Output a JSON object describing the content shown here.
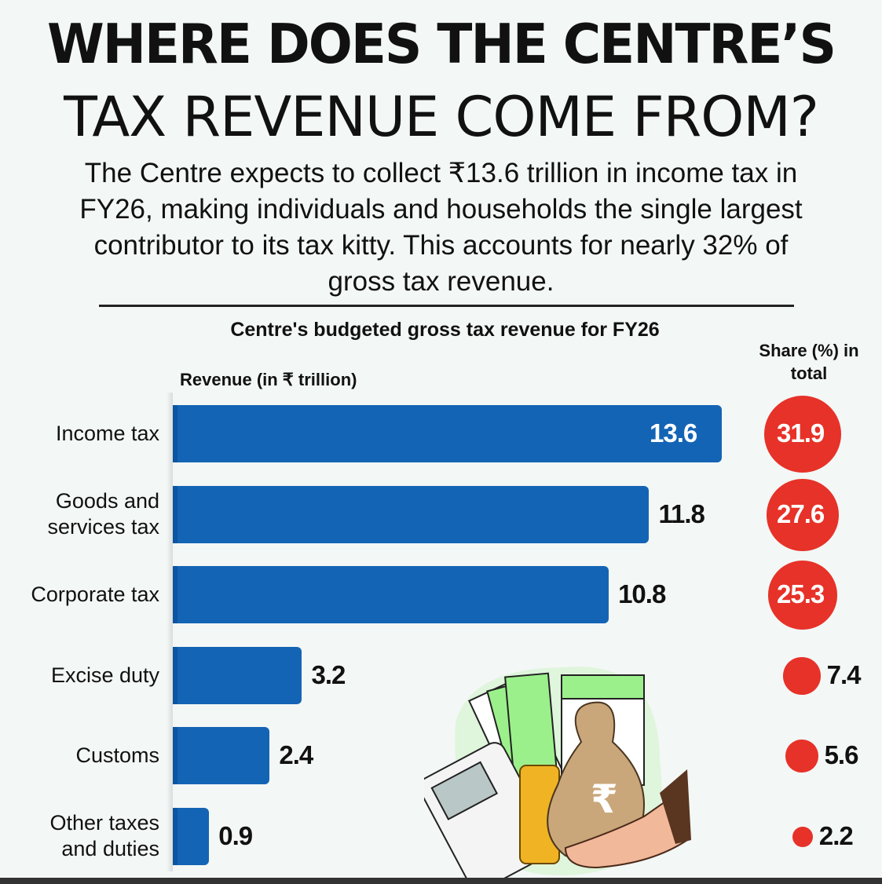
{
  "header": {
    "title_line1": "WHERE DOES THE CENTRE’S",
    "title_line2": "TAX REVENUE COME FROM?",
    "subtitle": "The Centre expects to collect ₹13.6 trillion in income tax in FY26, making individuals and households the single largest contributor to its tax kitty. This accounts for nearly 32% of gross tax revenue."
  },
  "colors": {
    "bar": "#1464b5",
    "circle": "#e63228"
  },
  "chart_data": {
    "type": "bar",
    "orientation": "horizontal",
    "title": "Centre's budgeted gross tax revenue for FY26",
    "xlabel": "Revenue (in ₹ trillion)",
    "share_label": "Share (%) in total",
    "categories": [
      "Income tax",
      "Goods and services tax",
      "Corporate tax",
      "Excise duty",
      "Customs",
      "Other taxes and duties"
    ],
    "values": [
      13.6,
      11.8,
      10.8,
      3.2,
      2.4,
      0.9
    ],
    "value_labels": [
      "13.6",
      "11.8",
      "10.8",
      "3.2",
      "2.4",
      "0.9"
    ],
    "share": [
      31.9,
      27.6,
      25.3,
      7.4,
      5.6,
      2.2
    ],
    "share_labels": [
      "31.9",
      "27.6",
      "25.3",
      "7.4",
      "5.6",
      "2.2"
    ],
    "xlim": [
      0,
      13.6
    ]
  }
}
